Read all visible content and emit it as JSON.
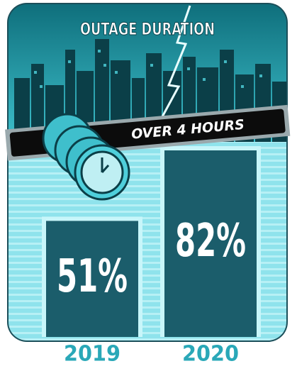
{
  "chart_data": {
    "type": "bar",
    "title": "OUTAGE DURATION",
    "subtitle": "OVER 4 HOURS",
    "categories": [
      "2019",
      "2020"
    ],
    "values": [
      51,
      82
    ],
    "value_labels": [
      "51%",
      "82%"
    ],
    "color": "#1b5d6b"
  }
}
